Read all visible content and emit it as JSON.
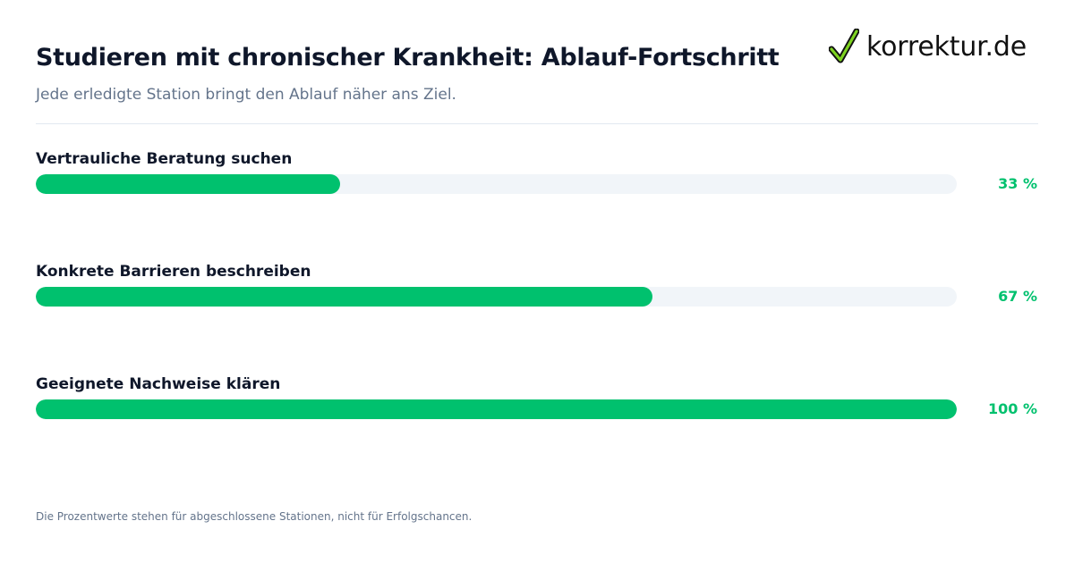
{
  "header": {
    "title": "Studieren mit chronischer Krankheit: Ablauf-Fortschritt",
    "subtitle": "Jede erledigte Station bringt den Ablauf näher ans Ziel."
  },
  "logo": {
    "text": "korrektur.de",
    "icon": "checkmark-icon",
    "check_color": "#7ed321"
  },
  "chart_data": {
    "type": "bar",
    "orientation": "horizontal",
    "categories": [
      "Vertrauliche Beratung suchen",
      "Konkrete Barrieren beschreiben",
      "Geeignete Nachweise klären"
    ],
    "values": [
      33,
      67,
      100
    ],
    "value_labels": [
      "33 %",
      "67 %",
      "100 %"
    ],
    "xlim": [
      0,
      100
    ],
    "unit": "%",
    "grid": false,
    "bar_color": "#00c16e",
    "track_color": "#f1f5f9",
    "label_color": "#00c16e"
  },
  "footnote": "Die Prozentwerte stehen für abgeschlossene Stationen, nicht für Erfolgschancen."
}
